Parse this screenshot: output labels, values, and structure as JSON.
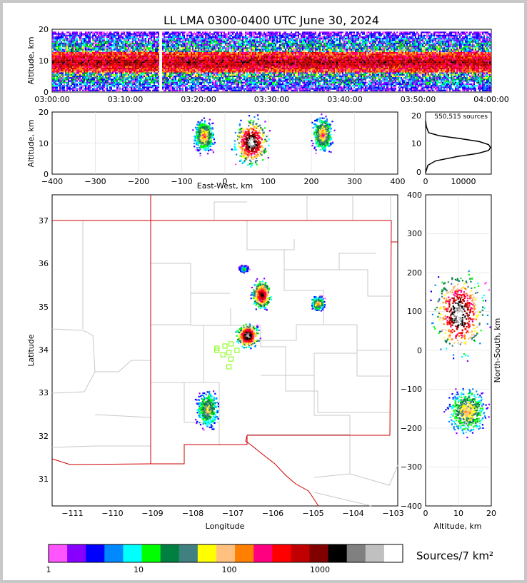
{
  "title": "LL LMA 0300-0400 UTC June 30, 2024",
  "colors": {
    "state_border": "#cc0000",
    "county_lines": "#c8c8c8",
    "grid": "#d8d8d8",
    "station_marker": "#7cfc00",
    "frame_background": "#c8c8c8"
  },
  "time_panel": {
    "ylabel": "Altitude, km",
    "x_ticks": [
      "03:00:00",
      "03:10:00",
      "03:20:00",
      "03:30:00",
      "03:40:00",
      "03:50:00",
      "04:00:00"
    ],
    "y_ticks": [
      "0",
      "10",
      "20"
    ]
  },
  "ew_panel": {
    "ylabel": "Altitude, km",
    "xlabel": "East-West, km",
    "x_ticks": [
      "−400",
      "−300",
      "−200",
      "−100",
      "0",
      "100",
      "200",
      "300",
      "400"
    ],
    "y_ticks": [
      "0",
      "10",
      "20"
    ]
  },
  "hist_panel": {
    "annotation": "550,515 sources",
    "x_ticks": [
      "0",
      "10000"
    ],
    "y_ticks": [
      "0",
      "10",
      "20"
    ]
  },
  "map_panel": {
    "xlabel": "Longitude",
    "ylabel": "Latitude",
    "x_ticks": [
      "−111",
      "−110",
      "−109",
      "−108",
      "−107",
      "−106",
      "−105",
      "−104",
      "−103"
    ],
    "y_ticks": [
      "31",
      "32",
      "33",
      "34",
      "35",
      "36",
      "37"
    ]
  },
  "ns_panel": {
    "xlabel": "Altitude, km",
    "ylabel": "North-South, km",
    "x_ticks": [
      "0",
      "10",
      "20"
    ],
    "y_ticks": [
      "−400",
      "−300",
      "−200",
      "−100",
      "0",
      "100",
      "200",
      "300",
      "400"
    ]
  },
  "colorbar": {
    "label": "Sources/7 km²",
    "tick_labels": [
      "1",
      "10",
      "100",
      "1000"
    ],
    "colors": [
      "#ff55ff",
      "#8800ff",
      "#0000ff",
      "#0088ff",
      "#00ffff",
      "#00ff00",
      "#008040",
      "#408080",
      "#ffff00",
      "#ffc080",
      "#ff8000",
      "#ff0080",
      "#ff0000",
      "#c00000",
      "#800000",
      "#000000",
      "#808080",
      "#c0c0c0",
      "#ffffff"
    ]
  },
  "chart_data": {
    "type": "heatmap",
    "time_height": {
      "x_range": [
        "03:00:00",
        "04:00:00"
      ],
      "ylim": [
        0,
        20
      ],
      "gap": [
        "03:14:30",
        "03:15:00"
      ],
      "core_altitude_km": [
        6,
        13
      ]
    },
    "east_west_height": {
      "xlim": [
        -400,
        400
      ],
      "ylim": [
        0,
        20
      ],
      "cells": [
        {
          "x_range": [
            -80,
            -20
          ],
          "alt_range": [
            6,
            19
          ]
        },
        {
          "x_range": [
            10,
            110
          ],
          "alt_range": [
            1,
            20
          ]
        },
        {
          "x_range": [
            195,
            255
          ],
          "alt_range": [
            6,
            20
          ]
        }
      ]
    },
    "altitude_histogram": {
      "total_sources": 550515,
      "xlim": [
        0,
        17000
      ],
      "ylim": [
        0,
        21
      ],
      "profile": [
        [
          0,
          0.5
        ],
        [
          600,
          3
        ],
        [
          2600,
          4.5
        ],
        [
          8400,
          6
        ],
        [
          13500,
          7
        ],
        [
          16300,
          8
        ],
        [
          16800,
          9
        ],
        [
          16300,
          10
        ],
        [
          13900,
          11
        ],
        [
          9000,
          12
        ],
        [
          3500,
          13
        ],
        [
          800,
          14
        ],
        [
          200,
          16
        ],
        [
          0,
          18
        ]
      ]
    },
    "plan_view": {
      "xlim": [
        -111.5,
        -102.9
      ],
      "ylim": [
        30.4,
        37.6
      ],
      "cells": [
        {
          "lon": [
            -106.6,
            -106.0
          ],
          "lat": [
            34.9,
            35.7
          ]
        },
        {
          "lon": [
            -107.0,
            -106.3
          ],
          "lat": [
            34.0,
            34.7
          ]
        },
        {
          "lon": [
            -105.1,
            -104.7
          ],
          "lat": [
            34.9,
            35.3
          ]
        },
        {
          "lon": [
            -108.0,
            -107.3
          ],
          "lat": [
            32.1,
            33.2
          ]
        },
        {
          "lon": [
            -106.9,
            -106.6
          ],
          "lat": [
            35.8,
            36.0
          ]
        }
      ],
      "stations": [
        [
          -107.2,
          34.1
        ],
        [
          -107.05,
          34.15
        ],
        [
          -107.4,
          34.0
        ],
        [
          -107.1,
          33.95
        ],
        [
          -107.25,
          33.9
        ],
        [
          -107.05,
          33.8
        ],
        [
          -106.9,
          34.0
        ],
        [
          -107.1,
          33.62
        ],
        [
          -107.4,
          34.05
        ]
      ]
    },
    "north_south_height": {
      "xlim": [
        0,
        20
      ],
      "ylim": [
        -400,
        400
      ],
      "cells": [
        {
          "ns_range": [
            -40,
            230
          ],
          "alt_range": [
            0,
            20
          ]
        },
        {
          "ns_range": [
            -230,
            -80
          ],
          "alt_range": [
            5,
            20
          ]
        }
      ]
    },
    "colorbar_scale": {
      "min": 1,
      "max": 10000,
      "scale": "log"
    }
  }
}
